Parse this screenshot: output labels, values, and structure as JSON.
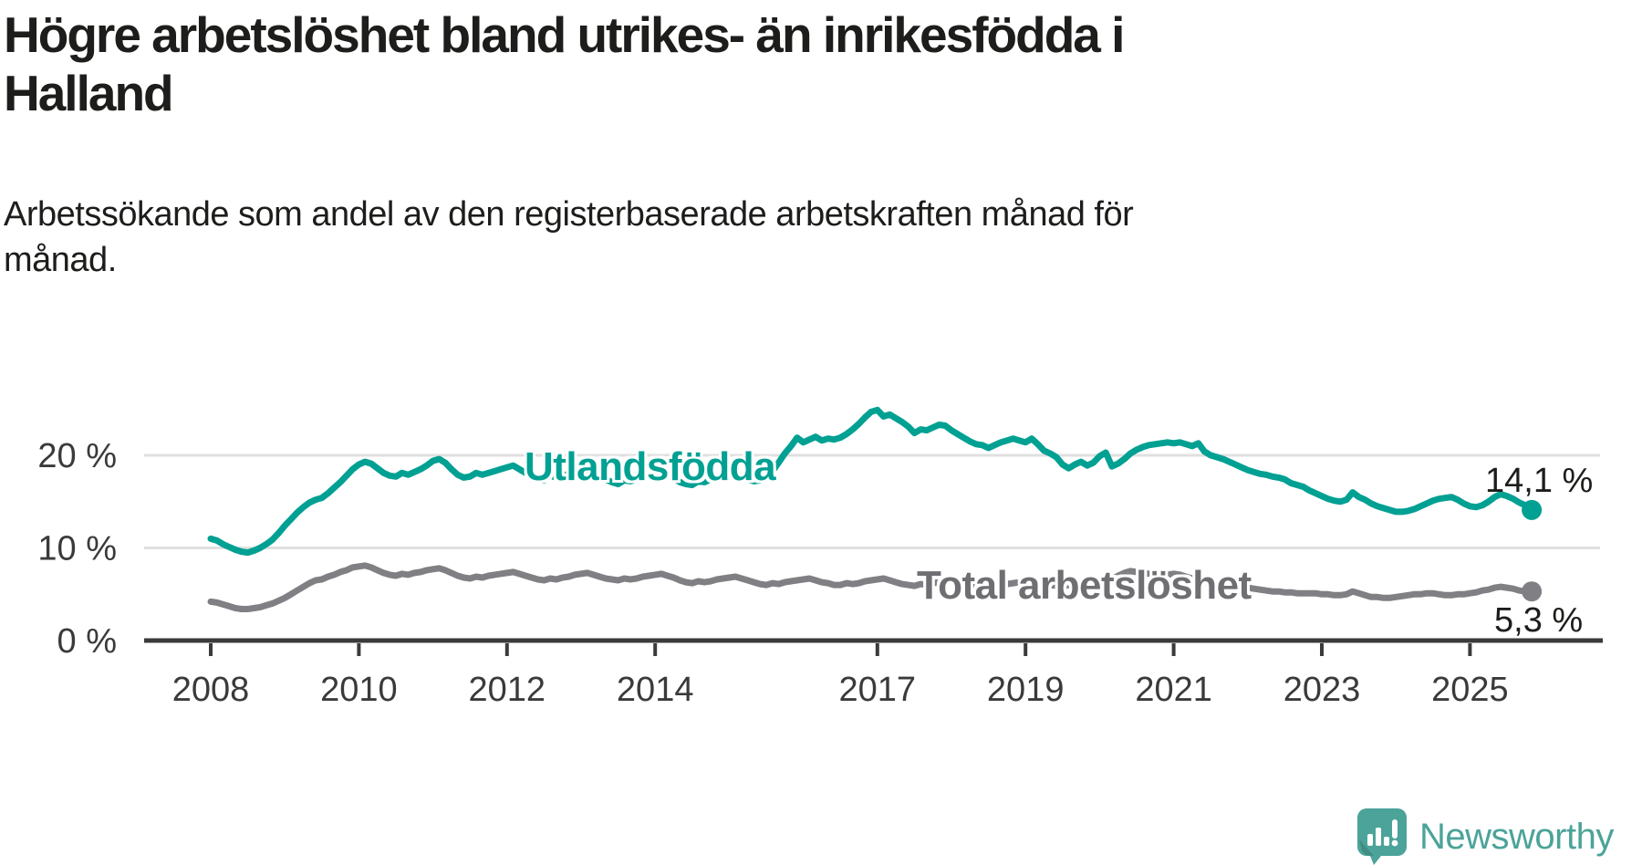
{
  "header": {
    "title_lines": [
      "Högre arbetslöshet bland utrikes- än inrikesfödda i",
      "Halland"
    ],
    "subtitle_lines": [
      "Arbetssökande som andel av den registerbaserade arbetskraften månad för",
      "månad."
    ]
  },
  "colors": {
    "accent_teal": "#00a093",
    "line_gray": "#808084",
    "label_gray": "#6f6f73",
    "axis": "#3b3b3b",
    "tick_text": "#3a3a3a",
    "grid": "#e0e0e0",
    "text_dark": "#1d1d1b",
    "logo_teal": "#4ba399"
  },
  "footer": {
    "brand": "Newsworthy",
    "logo_icon": "speech-bubble-bar-chart-icon"
  },
  "chart_data": {
    "type": "line",
    "title": "Högre arbetslöshet bland utrikes- än inrikesfödda i Halland",
    "subtitle": "Arbetssökande som andel av den registerbaserade arbetskraften månad för månad.",
    "x_unit": "month",
    "x_start": "2008-01",
    "x_end": "2025-11",
    "ylim": [
      0,
      27
    ],
    "grid": "horizontal",
    "yticks": [
      {
        "value": 0,
        "label": "0 %"
      },
      {
        "value": 10,
        "label": "10 %"
      },
      {
        "value": 20,
        "label": "20 %"
      }
    ],
    "xticks": [
      {
        "year": 2008,
        "label": "2008"
      },
      {
        "year": 2010,
        "label": "2010"
      },
      {
        "year": 2012,
        "label": "2012"
      },
      {
        "year": 2014,
        "label": "2014"
      },
      {
        "year": 2017,
        "label": "2017"
      },
      {
        "year": 2019,
        "label": "2019"
      },
      {
        "year": 2021,
        "label": "2021"
      },
      {
        "year": 2023,
        "label": "2023"
      },
      {
        "year": 2025,
        "label": "2025"
      }
    ],
    "series": [
      {
        "name": "Utlandsfödda",
        "color": "#00a093",
        "end_label": "14,1 %",
        "end_value": 14.1,
        "values": [
          11.0,
          10.8,
          10.4,
          10.1,
          9.8,
          9.6,
          9.5,
          9.7,
          10.0,
          10.4,
          10.9,
          11.6,
          12.4,
          13.1,
          13.8,
          14.4,
          14.9,
          15.2,
          15.4,
          15.9,
          16.5,
          17.1,
          17.8,
          18.5,
          19.0,
          19.3,
          19.1,
          18.6,
          18.1,
          17.8,
          17.7,
          18.1,
          17.9,
          18.2,
          18.5,
          18.9,
          19.4,
          19.6,
          19.2,
          18.5,
          17.9,
          17.6,
          17.7,
          18.1,
          17.9,
          18.1,
          18.3,
          18.5,
          18.7,
          18.9,
          18.5,
          18.1,
          17.7,
          17.4,
          17.3,
          17.8,
          17.6,
          17.8,
          18.0,
          18.3,
          18.5,
          18.6,
          18.3,
          17.9,
          17.4,
          17.1,
          16.9,
          17.3,
          17.2,
          17.4,
          17.6,
          17.9,
          18.1,
          18.2,
          17.9,
          17.5,
          17.1,
          16.9,
          16.8,
          17.2,
          17.1,
          17.4,
          17.7,
          18.0,
          17.8,
          17.9,
          17.7,
          17.4,
          17.2,
          17.3,
          17.6,
          18.3,
          19.2,
          20.2,
          21.0,
          21.9,
          21.4,
          21.7,
          22.0,
          21.6,
          21.8,
          21.7,
          21.9,
          22.3,
          22.8,
          23.4,
          24.1,
          24.7,
          24.9,
          24.2,
          24.4,
          24.0,
          23.6,
          23.1,
          22.4,
          22.8,
          22.7,
          23.0,
          23.3,
          23.2,
          22.7,
          22.3,
          21.9,
          21.5,
          21.2,
          21.1,
          20.8,
          21.1,
          21.4,
          21.6,
          21.8,
          21.6,
          21.4,
          21.8,
          21.2,
          20.5,
          20.2,
          19.8,
          19.0,
          18.6,
          19.0,
          19.3,
          18.9,
          19.2,
          19.9,
          20.3,
          18.8,
          19.1,
          19.6,
          20.2,
          20.6,
          20.9,
          21.1,
          21.2,
          21.3,
          21.4,
          21.3,
          21.4,
          21.2,
          21.0,
          21.3,
          20.4,
          20.0,
          19.8,
          19.6,
          19.3,
          19.0,
          18.7,
          18.4,
          18.2,
          18.0,
          17.9,
          17.7,
          17.6,
          17.4,
          17.0,
          16.8,
          16.6,
          16.2,
          15.9,
          15.6,
          15.3,
          15.1,
          15.0,
          15.2,
          16.0,
          15.5,
          15.2,
          14.8,
          14.5,
          14.3,
          14.1,
          13.9,
          13.9,
          14.0,
          14.2,
          14.5,
          14.8,
          15.1,
          15.3,
          15.4,
          15.5,
          15.2,
          14.8,
          14.5,
          14.4,
          14.6,
          15.0,
          15.5,
          15.8,
          15.6,
          15.3,
          14.9,
          14.6,
          14.1
        ]
      },
      {
        "name": "Total arbetslöshet",
        "color": "#808084",
        "end_label": "5,3 %",
        "end_value": 5.3,
        "values": [
          4.2,
          4.1,
          3.9,
          3.7,
          3.5,
          3.4,
          3.4,
          3.5,
          3.6,
          3.8,
          4.0,
          4.3,
          4.6,
          5.0,
          5.4,
          5.8,
          6.2,
          6.5,
          6.6,
          6.9,
          7.1,
          7.4,
          7.6,
          7.9,
          8.0,
          8.1,
          7.9,
          7.6,
          7.3,
          7.1,
          7.0,
          7.2,
          7.1,
          7.3,
          7.4,
          7.6,
          7.7,
          7.8,
          7.6,
          7.3,
          7.0,
          6.8,
          6.7,
          6.9,
          6.8,
          7.0,
          7.1,
          7.2,
          7.3,
          7.4,
          7.2,
          7.0,
          6.8,
          6.6,
          6.5,
          6.7,
          6.6,
          6.8,
          6.9,
          7.1,
          7.2,
          7.3,
          7.1,
          6.9,
          6.7,
          6.6,
          6.5,
          6.7,
          6.6,
          6.7,
          6.9,
          7.0,
          7.1,
          7.2,
          7.0,
          6.8,
          6.5,
          6.3,
          6.2,
          6.4,
          6.3,
          6.4,
          6.6,
          6.7,
          6.8,
          6.9,
          6.7,
          6.5,
          6.3,
          6.1,
          6.0,
          6.2,
          6.1,
          6.3,
          6.4,
          6.5,
          6.6,
          6.7,
          6.5,
          6.3,
          6.2,
          6.0,
          6.0,
          6.2,
          6.1,
          6.2,
          6.4,
          6.5,
          6.6,
          6.7,
          6.5,
          6.3,
          6.1,
          6.0,
          5.9,
          6.1,
          6.0,
          6.2,
          6.3,
          6.4,
          6.5,
          6.6,
          6.4,
          6.2,
          6.0,
          5.9,
          5.9,
          6.0,
          6.0,
          6.1,
          6.2,
          6.3,
          6.3,
          6.4,
          6.2,
          6.1,
          6.0,
          5.9,
          5.9,
          6.0,
          6.0,
          6.1,
          6.1,
          6.2,
          6.2,
          6.3,
          6.6,
          7.0,
          7.3,
          7.5,
          7.4,
          7.3,
          7.2,
          7.1,
          7.0,
          7.1,
          7.2,
          7.1,
          6.9,
          6.7,
          6.5,
          6.3,
          6.2,
          6.1,
          6.0,
          5.9,
          5.8,
          5.8,
          5.7,
          5.6,
          5.5,
          5.4,
          5.3,
          5.3,
          5.2,
          5.2,
          5.1,
          5.1,
          5.1,
          5.1,
          5.0,
          5.0,
          4.9,
          4.9,
          5.0,
          5.3,
          5.1,
          4.9,
          4.7,
          4.7,
          4.6,
          4.6,
          4.7,
          4.8,
          4.9,
          5.0,
          5.0,
          5.1,
          5.1,
          5.0,
          4.9,
          4.9,
          5.0,
          5.0,
          5.1,
          5.2,
          5.4,
          5.5,
          5.7,
          5.8,
          5.7,
          5.6,
          5.4,
          5.3,
          5.3
        ]
      }
    ]
  }
}
